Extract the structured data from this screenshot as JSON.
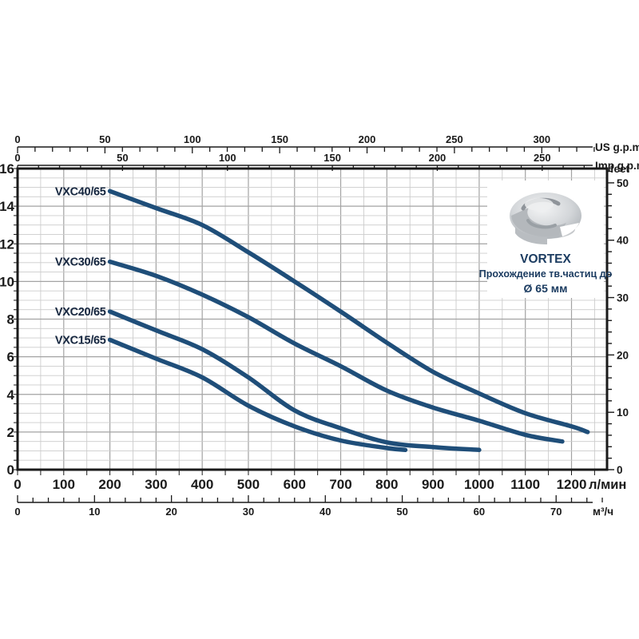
{
  "page": {
    "background": "#ffffff"
  },
  "vortex_box": {
    "title": "VORTEX",
    "subtitle": "Прохождение тв.частиц до",
    "particle_size": "Ø 65 мм",
    "image": "impeller-3d-render",
    "text_color": "#1c3c61"
  },
  "chart_data": {
    "type": "line",
    "title": "",
    "grid": {
      "on": true,
      "x_minor_step_lmin": 50,
      "x_major_step_lmin": 100,
      "y_minor_step_m": 0.5,
      "y_major_step_m": 2
    },
    "axes": {
      "bottom_primary": {
        "unit": "л/мин",
        "tick_labels": [
          0,
          100,
          200,
          300,
          400,
          500,
          600,
          700,
          800,
          900,
          1000,
          1100,
          1200
        ],
        "range_lmin": [
          0,
          1277
        ]
      },
      "bottom_secondary": {
        "unit": "м³/ч",
        "tick_labels": [
          0,
          10,
          20,
          30,
          40,
          50,
          60,
          70
        ],
        "minor_step": 2,
        "lmin_per_unit": 16.6667
      },
      "top_us_gpm": {
        "unit": "US g.p.m.",
        "tick_labels": [
          0,
          50,
          100,
          150,
          200,
          250,
          300
        ],
        "minor_step": 10,
        "lmin_per_unit": 3.78541
      },
      "top_imp_gpm": {
        "unit": "Imp g.p.m.",
        "tick_labels": [
          0,
          50,
          100,
          150,
          200,
          250
        ],
        "minor_step": 10,
        "lmin_per_unit": 4.54609
      },
      "left_head_m": {
        "unit": "",
        "tick_labels": [
          0,
          2,
          4,
          6,
          8,
          10,
          12,
          14,
          16
        ],
        "range_m": [
          0,
          16
        ]
      },
      "right_feet": {
        "unit": "feet",
        "tick_labels": [
          0,
          10,
          20,
          30,
          40,
          50
        ],
        "minor_step": 2,
        "m_per_unit": 0.3048
      }
    },
    "series": [
      {
        "name": "VXC40/65",
        "points": [
          [
            200,
            14.8
          ],
          [
            300,
            13.9
          ],
          [
            400,
            13.0
          ],
          [
            500,
            11.55
          ],
          [
            600,
            10.0
          ],
          [
            700,
            8.4
          ],
          [
            800,
            6.75
          ],
          [
            900,
            5.2
          ],
          [
            1000,
            4.05
          ],
          [
            1100,
            3.0
          ],
          [
            1200,
            2.3
          ],
          [
            1235,
            2.0
          ]
        ]
      },
      {
        "name": "VXC30/65",
        "points": [
          [
            200,
            11.05
          ],
          [
            300,
            10.3
          ],
          [
            400,
            9.3
          ],
          [
            500,
            8.1
          ],
          [
            600,
            6.7
          ],
          [
            700,
            5.5
          ],
          [
            800,
            4.2
          ],
          [
            900,
            3.3
          ],
          [
            1000,
            2.6
          ],
          [
            1100,
            1.85
          ],
          [
            1180,
            1.5
          ]
        ]
      },
      {
        "name": "VXC20/65",
        "points": [
          [
            200,
            8.4
          ],
          [
            300,
            7.4
          ],
          [
            400,
            6.4
          ],
          [
            500,
            4.9
          ],
          [
            600,
            3.15
          ],
          [
            700,
            2.2
          ],
          [
            800,
            1.45
          ],
          [
            900,
            1.2
          ],
          [
            1000,
            1.05
          ]
        ]
      },
      {
        "name": "VXC15/65",
        "points": [
          [
            200,
            6.9
          ],
          [
            300,
            5.9
          ],
          [
            400,
            4.9
          ],
          [
            500,
            3.4
          ],
          [
            600,
            2.3
          ],
          [
            700,
            1.55
          ],
          [
            800,
            1.15
          ],
          [
            840,
            1.05
          ]
        ]
      }
    ],
    "style": {
      "curve_color": "#1f4e79",
      "curve_label_color": "#15263f",
      "grid_minor_color": "#cccccc",
      "grid_major_color": "#a3a3a3",
      "axis_color": "#1a1a1a"
    }
  }
}
